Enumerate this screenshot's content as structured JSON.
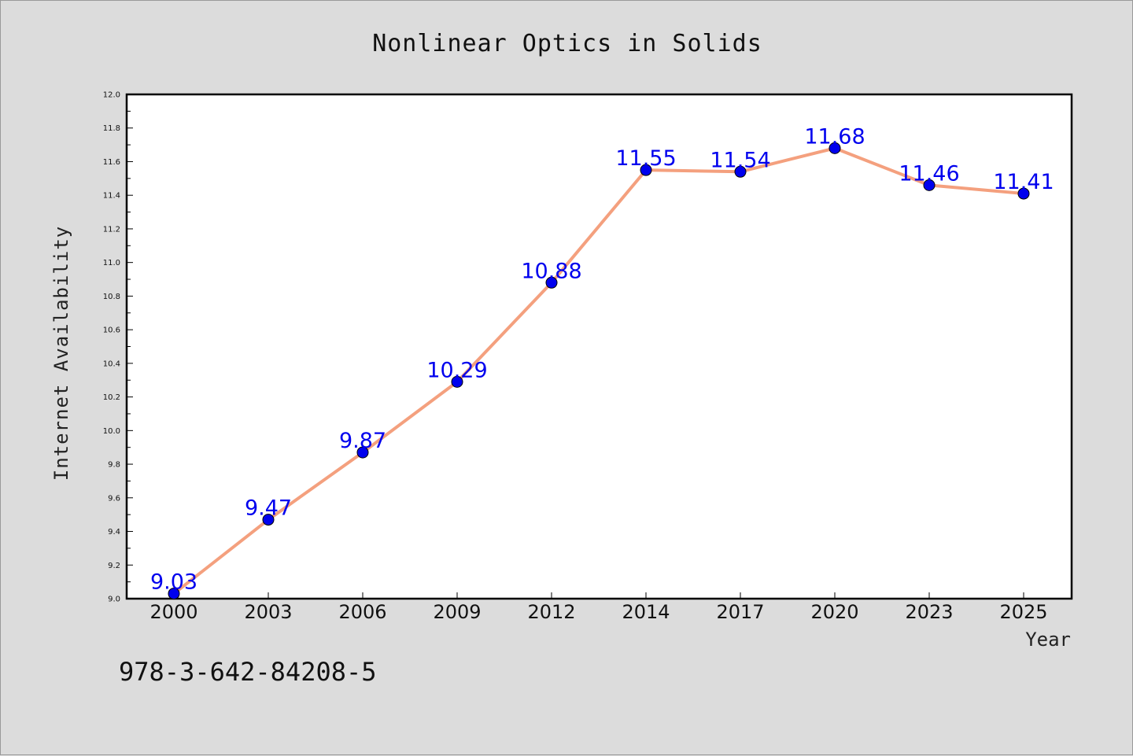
{
  "chart_data": {
    "type": "line",
    "title": "Nonlinear Optics in Solids",
    "xlabel": "Year",
    "ylabel": "Internet Availability",
    "categories": [
      "2000",
      "2003",
      "2006",
      "2009",
      "2012",
      "2014",
      "2017",
      "2020",
      "2023",
      "2025"
    ],
    "values": [
      9.03,
      9.47,
      9.87,
      10.29,
      10.88,
      11.55,
      11.54,
      11.68,
      11.46,
      11.41
    ],
    "value_labels": [
      "9.03",
      "9.47",
      "9.87",
      "10.29",
      "10.88",
      "11.55",
      "11.54",
      "11.68",
      "11.46",
      "11.41"
    ],
    "ylim": [
      9.0,
      12.0
    ],
    "yticks": [
      "9.0",
      "9.2",
      "9.4",
      "9.6",
      "9.8",
      "10.0",
      "10.2",
      "10.4",
      "10.6",
      "10.8",
      "11.0",
      "11.2",
      "11.4",
      "11.6",
      "11.8",
      "12.0"
    ],
    "grid": false,
    "line_color": "#f4a07e",
    "marker_color": "#0000ee",
    "label_color": "#0000ee"
  },
  "footer": {
    "isbn": "978-3-642-84208-5"
  }
}
